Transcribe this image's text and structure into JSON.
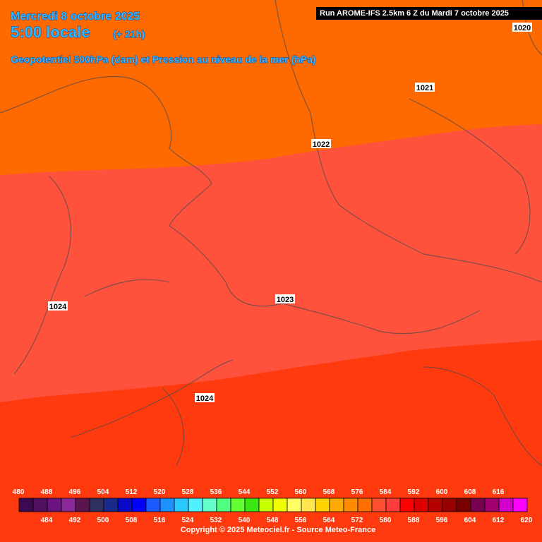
{
  "header": {
    "date": "Mercredi 8 octobre 2025",
    "time": "5:00 locale",
    "lead": "(+ 21h)",
    "subtitle": "Geopotentiel 500hPa (dam) et Pression au niveau de la mer (hPa)",
    "run": "Run AROME-IFS 2.5km 6 Z du Mardi 7 octobre 2025"
  },
  "isobars": [
    1020,
    1021,
    1022,
    1023,
    1024,
    1024
  ],
  "colorbar": {
    "ticks": [
      480,
      484,
      488,
      492,
      496,
      500,
      504,
      508,
      512,
      516,
      520,
      524,
      528,
      532,
      536,
      540,
      544,
      548,
      552,
      556,
      560,
      564,
      568,
      572,
      576,
      580,
      584,
      588,
      592,
      596,
      600,
      604,
      608,
      612,
      616,
      620
    ],
    "colors": [
      "#3c0a50",
      "#501060",
      "#6a1480",
      "#8a2a9a",
      "#5a1450",
      "#303060",
      "#1a2a8a",
      "#0a0ac8",
      "#0000ff",
      "#1a5aff",
      "#1e90ff",
      "#2ac8ff",
      "#50f0ff",
      "#64ffc8",
      "#50ff80",
      "#64ff32",
      "#3ce614",
      "#c8ff00",
      "#f0ff00",
      "#ffff64",
      "#ffe650",
      "#ffd200",
      "#ffaa00",
      "#ff8c00",
      "#ff6e00",
      "#ff5032",
      "#ff3c3c",
      "#ff0000",
      "#dc0000",
      "#b40000",
      "#960000",
      "#780000",
      "#780050",
      "#a0006e",
      "#d200c8",
      "#ff00ff"
    ]
  },
  "copyright": "Copyright © 2025 Meteociel.fr - Source Meteo-France"
}
